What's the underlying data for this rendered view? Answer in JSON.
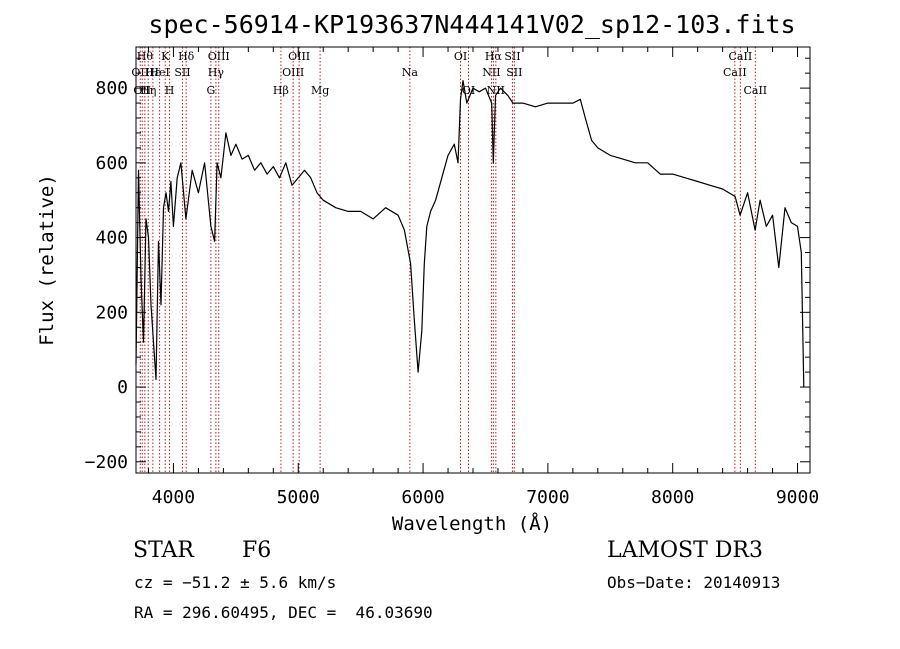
{
  "chart_data": {
    "type": "line",
    "title": "spec-56914-KP193637N444141V02_sp12-103.fits",
    "xlabel": "Wavelength (Å)",
    "ylabel": "Flux (relative)",
    "xlim": [
      3700,
      9100
    ],
    "ylim": [
      -230,
      910
    ],
    "x_ticks": [
      4000,
      5000,
      6000,
      7000,
      8000,
      9000
    ],
    "x_tick_labels": [
      "4000",
      "5000",
      "6000",
      "7000",
      "8000",
      "9000"
    ],
    "y_ticks": [
      -200,
      0,
      200,
      400,
      600,
      800
    ],
    "y_tick_labels": [
      "−200",
      "0",
      "200",
      "400",
      "600",
      "800"
    ],
    "grid": false,
    "line_color": "#000000",
    "marker_color": "#b22222",
    "series": [
      {
        "x": [
          3700,
          3720,
          3740,
          3760,
          3780,
          3800,
          3820,
          3840,
          3860,
          3880,
          3900,
          3920,
          3940,
          3960,
          3980,
          4000,
          4030,
          4060,
          4100,
          4150,
          4200,
          4250,
          4300,
          4330,
          4350,
          4380,
          4420,
          4460,
          4500,
          4550,
          4600,
          4650,
          4700,
          4750,
          4800,
          4850,
          4900,
          4950,
          5000,
          5050,
          5100,
          5150,
          5200,
          5300,
          5400,
          5500,
          5600,
          5700,
          5800,
          5850,
          5900,
          5930,
          5960,
          5990,
          6010,
          6030,
          6060,
          6100,
          6150,
          6200,
          6250,
          6280,
          6300,
          6320,
          6350,
          6400,
          6450,
          6500,
          6550,
          6563,
          6580,
          6620,
          6680,
          6720,
          6760,
          6800,
          6900,
          7000,
          7100,
          7200,
          7260,
          7300,
          7350,
          7400,
          7500,
          7600,
          7700,
          7800,
          7900,
          8000,
          8100,
          8200,
          8300,
          8400,
          8500,
          8540,
          8600,
          8660,
          8700,
          8750,
          8800,
          8850,
          8900,
          8950,
          9000,
          9030,
          9050
        ],
        "y": [
          60,
          580,
          290,
          120,
          450,
          400,
          220,
          120,
          20,
          390,
          220,
          480,
          520,
          470,
          550,
          430,
          560,
          600,
          450,
          580,
          520,
          600,
          430,
          390,
          600,
          560,
          680,
          620,
          650,
          610,
          620,
          580,
          600,
          570,
          590,
          560,
          600,
          540,
          560,
          580,
          560,
          520,
          500,
          480,
          470,
          470,
          450,
          480,
          460,
          420,
          330,
          180,
          40,
          150,
          330,
          430,
          470,
          500,
          560,
          620,
          650,
          600,
          770,
          820,
          760,
          800,
          790,
          800,
          760,
          600,
          780,
          800,
          780,
          760,
          760,
          760,
          750,
          760,
          760,
          760,
          770,
          720,
          660,
          640,
          620,
          610,
          600,
          600,
          570,
          570,
          560,
          550,
          540,
          530,
          510,
          460,
          520,
          420,
          500,
          430,
          460,
          320,
          480,
          440,
          430,
          360,
          0
        ]
      }
    ],
    "line_markers": [
      {
        "x": 3734,
        "label": "OII",
        "row": 1
      },
      {
        "x": 3750,
        "label": "OII",
        "row": 2
      },
      {
        "x": 3771,
        "label": "Hθ",
        "row": 0
      },
      {
        "x": 3798,
        "label": "Hη",
        "row": 2
      },
      {
        "x": 3835,
        "label": "Hε",
        "row": 1
      },
      {
        "x": 3889,
        "label": "HeI",
        "row": 1
      },
      {
        "x": 3934,
        "label": "K",
        "row": 0
      },
      {
        "x": 3969,
        "label": "H",
        "row": 2
      },
      {
        "x": 4072,
        "label": "SII",
        "row": 1
      },
      {
        "x": 4102,
        "label": "Hδ",
        "row": 0
      },
      {
        "x": 4300,
        "label": "G",
        "row": 2
      },
      {
        "x": 4340,
        "label": "Hγ",
        "row": 1
      },
      {
        "x": 4363,
        "label": "OIII",
        "row": 0
      },
      {
        "x": 4861,
        "label": "Hβ",
        "row": 2
      },
      {
        "x": 4959,
        "label": "OIII",
        "row": 1
      },
      {
        "x": 5007,
        "label": "OIII",
        "row": 0
      },
      {
        "x": 5175,
        "label": "Mg",
        "row": 2
      },
      {
        "x": 5894,
        "label": "Na",
        "row": 1
      },
      {
        "x": 6300,
        "label": "OI",
        "row": 0
      },
      {
        "x": 6364,
        "label": "OI",
        "row": 2
      },
      {
        "x": 6548,
        "label": "NII",
        "row": 1
      },
      {
        "x": 6563,
        "label": "Hα",
        "row": 0
      },
      {
        "x": 6583,
        "label": "NII",
        "row": 2
      },
      {
        "x": 6716,
        "label": "SII",
        "row": 0
      },
      {
        "x": 6731,
        "label": "SII",
        "row": 1
      },
      {
        "x": 8498,
        "label": "CaII",
        "row": 1
      },
      {
        "x": 8542,
        "label": "CaII",
        "row": 0
      },
      {
        "x": 8662,
        "label": "CaII",
        "row": 2
      }
    ]
  },
  "info": {
    "object_class": "STAR",
    "subclass": "F6",
    "survey": "LAMOST DR3",
    "cz": "cz = −51.2 ± 5.6 km/s",
    "obs_date": "Obs−Date: 20140913",
    "coords": "RA = 296.60495, DEC =  46.03690"
  }
}
